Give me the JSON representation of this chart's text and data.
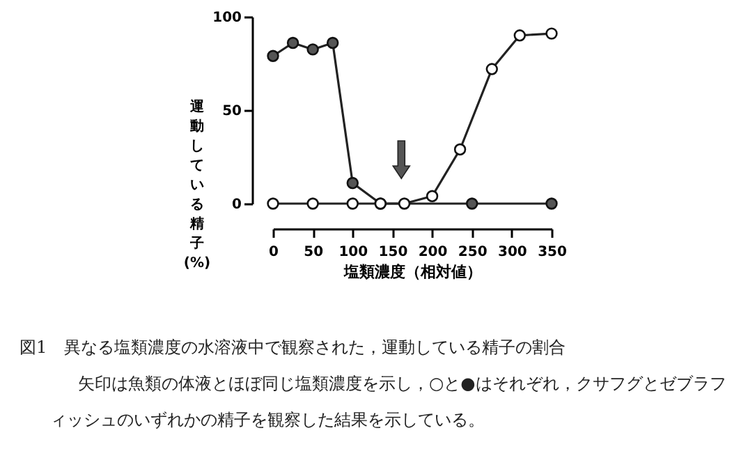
{
  "chart_data": {
    "type": "line",
    "xlabel": "塩類濃度（相対値）",
    "ylabel": "運動している精子(%)",
    "xlim": [
      0,
      350
    ],
    "xticks": [
      0,
      50,
      100,
      150,
      200,
      250,
      300,
      350
    ],
    "ylim": [
      0,
      100
    ],
    "yticks": [
      0,
      50,
      100
    ],
    "grid": false,
    "marker": "circle",
    "line_style": "solid",
    "series": [
      {
        "color": "#555555",
        "x": [
          0,
          25,
          50,
          75,
          100,
          135,
          250,
          350
        ],
        "values": [
          79,
          86,
          82.5,
          86,
          11,
          0,
          0,
          0
        ]
      },
      {
        "color": "#ffffff",
        "x": [
          0,
          50,
          100,
          135,
          165,
          200,
          235,
          275,
          310,
          350
        ],
        "values": [
          0,
          0,
          0,
          0,
          0,
          4,
          29,
          72,
          90,
          91
        ]
      }
    ],
    "annotations": [
      "図1　異なる塩類濃度の水溶液中で観察された，運動している精子の割合",
      "矢印は魚類の体液とほぼ同じ塩類濃度を示し，○と●はそれぞれ，クサフグとゼブラフィッシュのいずれかの精子を観察した結果を示している。"
    ]
  }
}
